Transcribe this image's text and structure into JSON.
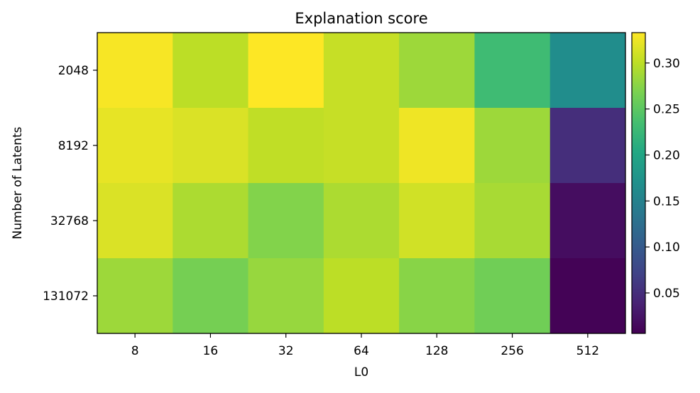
{
  "chart_data": {
    "type": "heatmap",
    "title": "Explanation score",
    "xlabel": "L0",
    "ylabel": "Number of Latents",
    "x_categories": [
      "8",
      "16",
      "32",
      "64",
      "128",
      "256",
      "512"
    ],
    "y_categories": [
      "2048",
      "8192",
      "32768",
      "131072"
    ],
    "values": [
      [
        0.33,
        0.3,
        0.333,
        0.305,
        0.285,
        0.23,
        0.165
      ],
      [
        0.322,
        0.315,
        0.302,
        0.305,
        0.326,
        0.285,
        0.05
      ],
      [
        0.315,
        0.292,
        0.272,
        0.292,
        0.31,
        0.29,
        0.018
      ],
      [
        0.285,
        0.265,
        0.282,
        0.3,
        0.275,
        0.262,
        0.008
      ]
    ],
    "colormap": "viridis",
    "color_range": [
      0.006,
      0.333
    ],
    "colorbar_ticks": [
      "0.05",
      "0.10",
      "0.15",
      "0.20",
      "0.25",
      "0.30"
    ],
    "grid": false
  }
}
